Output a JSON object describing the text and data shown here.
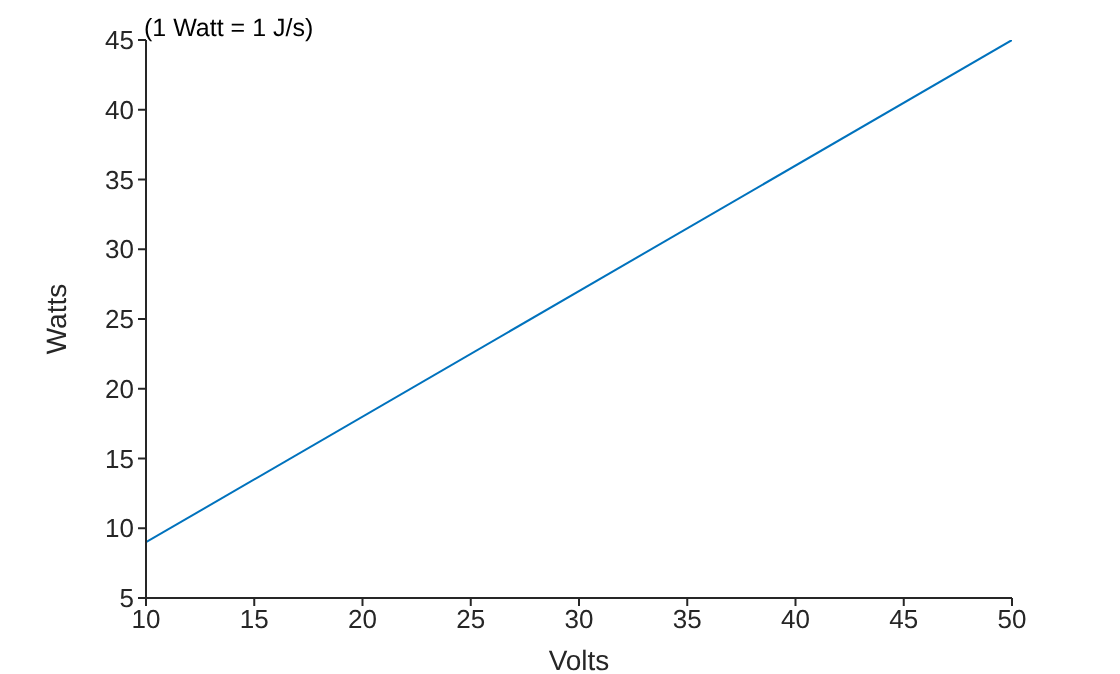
{
  "chart_data": {
    "type": "line",
    "title": "(1 Watt = 1 J/s)",
    "xlabel": "Volts",
    "ylabel": "Watts",
    "x": [
      10,
      50
    ],
    "series": [
      {
        "color": "#0072bd",
        "values": [
          9,
          45
        ]
      }
    ],
    "xlim": [
      10,
      50
    ],
    "xticks": [
      10,
      15,
      20,
      25,
      30,
      35,
      40,
      45,
      50
    ],
    "ylim": [
      5,
      45
    ],
    "yticks": [
      5,
      10,
      15,
      20,
      25,
      30,
      35,
      40,
      45
    ],
    "grid": false,
    "legend": false,
    "marker": "none",
    "line_style": "solid"
  }
}
